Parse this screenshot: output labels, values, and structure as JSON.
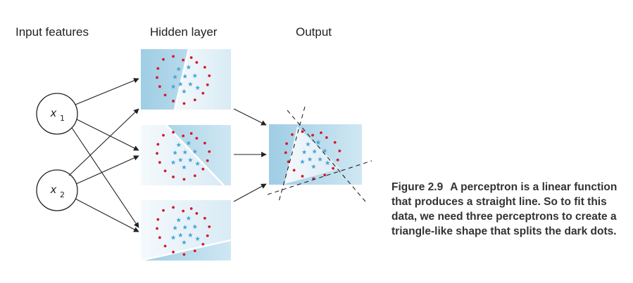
{
  "headers": {
    "input": "Input features",
    "hidden": "Hidden layer",
    "output": "Output"
  },
  "inputs": [
    {
      "base": "x",
      "sub": "1"
    },
    {
      "base": "x",
      "sub": "2"
    }
  ],
  "caption": {
    "label": "Figure 2.9",
    "text": "A perceptron is a linear function that produces a straight line. So to fit this data, we need three perceptrons to create a triangle-like shape that splits the dark dots."
  },
  "colors": {
    "panel_blue": "#a9d3e8",
    "panel_light": "#e8f3f9",
    "dot_red": "#d7182a",
    "star_blue": "#4aa3d4",
    "line": "#222222"
  }
}
